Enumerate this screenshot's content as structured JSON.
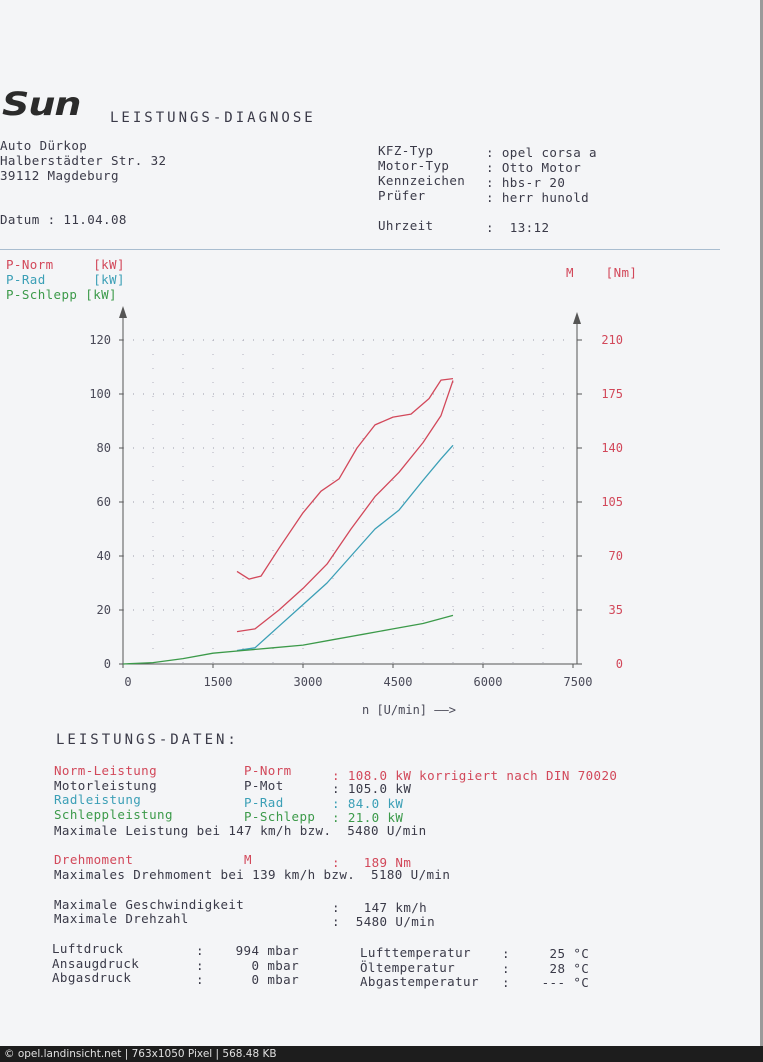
{
  "header": {
    "logo": "Sun",
    "title": "LEISTUNGS-DIAGNOSE",
    "company": [
      "Auto Dürkop",
      "Halberstädter Str. 32",
      "39112 Magdeburg"
    ],
    "date_label": "Datum",
    "date_value": "11.04.08",
    "fields": [
      {
        "label": "KFZ-Typ",
        "value": "opel corsa a"
      },
      {
        "label": "Motor-Typ",
        "value": "Otto Motor"
      },
      {
        "label": "Kennzeichen",
        "value": "hbs-r 20"
      },
      {
        "label": "Prüfer",
        "value": "herr hunold"
      }
    ],
    "time_label": "Uhrzeit",
    "time_value": "13:12"
  },
  "legend": {
    "left": [
      {
        "name": "P-Norm",
        "unit": "[kW]",
        "color": "#d2485a"
      },
      {
        "name": "P-Rad",
        "unit": "[kW]",
        "color": "#3b9fb6"
      },
      {
        "name": "P-Schlepp",
        "unit": "[kW]",
        "color": "#3c9a4a"
      }
    ],
    "right": {
      "name": "M",
      "unit": "[Nm]",
      "color": "#d2485a"
    }
  },
  "chart_data": {
    "type": "line",
    "xlabel": "n [U/min] ——>",
    "xlim": [
      0,
      7500
    ],
    "ylim_left": [
      0,
      120
    ],
    "ylim_right": [
      0,
      210
    ],
    "x_ticks": [
      0,
      1500,
      3000,
      4500,
      6000,
      7500
    ],
    "y_ticks_left": [
      0,
      20,
      40,
      60,
      80,
      100,
      120
    ],
    "y_ticks_right": [
      0,
      35,
      70,
      105,
      140,
      175,
      210
    ],
    "grid": true,
    "series": [
      {
        "name": "P-Norm",
        "axis": "left",
        "color": "#d2485a",
        "x": [
          1900,
          2200,
          2600,
          3000,
          3400,
          3800,
          4200,
          4600,
          5000,
          5300,
          5500
        ],
        "y": [
          12,
          13,
          20,
          28,
          37,
          50,
          62,
          71,
          82,
          92,
          105
        ]
      },
      {
        "name": "P-Rad",
        "axis": "left",
        "color": "#3b9fb6",
        "x": [
          1900,
          2200,
          2600,
          3000,
          3400,
          3800,
          4200,
          4600,
          5000,
          5300,
          5500
        ],
        "y": [
          5,
          6,
          14,
          22,
          30,
          40,
          50,
          57,
          68,
          76,
          81
        ]
      },
      {
        "name": "P-Schlepp",
        "axis": "left",
        "color": "#3c9a4a",
        "x": [
          0,
          500,
          1000,
          1500,
          2000,
          2500,
          3000,
          3500,
          4000,
          4500,
          5000,
          5500
        ],
        "y": [
          0,
          0.5,
          2,
          4,
          5,
          6,
          7,
          9,
          11,
          13,
          15,
          18
        ]
      },
      {
        "name": "M",
        "axis": "right",
        "color": "#d2485a",
        "x": [
          1900,
          2100,
          2300,
          2600,
          3000,
          3300,
          3600,
          3900,
          4200,
          4500,
          4800,
          5100,
          5300,
          5500
        ],
        "y": [
          60,
          55,
          57,
          75,
          98,
          112,
          120,
          140,
          155,
          160,
          162,
          172,
          184,
          185
        ]
      }
    ]
  },
  "data_section": {
    "title": "LEISTUNGS-DATEN:",
    "rows": [
      {
        "label": "Norm-Leistung",
        "key": "P-Norm",
        "value": ": 108.0 kW korrigiert nach DIN 70020",
        "color": "#d2485a"
      },
      {
        "label": "Motorleistung",
        "key": "P-Mot",
        "value": ": 105.0 kW",
        "color": "#3a3a48"
      },
      {
        "label": "Radleistung",
        "key": "P-Rad",
        "value": ": 84.0 kW",
        "color": "#3b9fb6"
      },
      {
        "label": "Schleppleistung",
        "key": "P-Schlepp",
        "value": ": 21.0 kW",
        "color": "#3c9a4a"
      }
    ],
    "max_power": "Maximale Leistung bei 147 km/h bzw.  5480 U/min",
    "torque": {
      "label": "Drehmoment",
      "key": "M",
      "value": ":   189 Nm"
    },
    "max_torque": "Maximales Drehmoment bei 139 km/h bzw.  5180 U/min",
    "max_speed": {
      "label": "Maximale Geschwindigkeit",
      "value": ":   147 km/h"
    },
    "max_rpm": {
      "label": "Maximale Drehzahl",
      "value": ":  5480 U/min"
    },
    "env_left": [
      {
        "label": "Luftdruck",
        "value": ":    994 mbar"
      },
      {
        "label": "Ansaugdruck",
        "value": ":      0 mbar"
      },
      {
        "label": "Abgasdruck",
        "value": ":      0 mbar"
      }
    ],
    "env_right": [
      {
        "label": "Lufttemperatur",
        "value": ":     25 °C"
      },
      {
        "label": "Öltemperatur",
        "value": ":     28 °C"
      },
      {
        "label": "Abgastemperatur",
        "value": ":    --- °C"
      }
    ]
  },
  "status_bar": {
    "text": "© opel.landinsicht.net | 763x1050 Pixel | 568.48 KB"
  }
}
